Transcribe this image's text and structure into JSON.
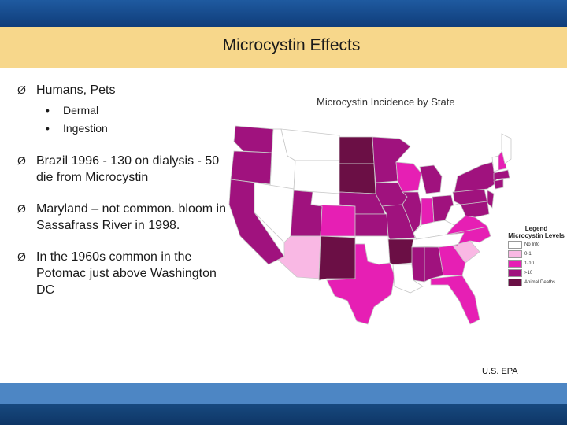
{
  "slide": {
    "title": "Microcystin Effects",
    "bullets": [
      {
        "text": "Humans, Pets",
        "sub": [
          "Dermal",
          "Ingestion"
        ]
      },
      {
        "text": "Brazil 1996 - 130 on dialysis - 50 die from Microcystin"
      },
      {
        "text": "Maryland – not common. bloom in Sassafrass River in 1998."
      },
      {
        "text": "In the 1960s common in the Potomac just above Washington DC"
      }
    ],
    "bullet_glyph": "Ø",
    "sub_bullet_glyph": "•",
    "credit": "U.S. EPA"
  },
  "map": {
    "title": "Microcystin Incidence by State",
    "legend": {
      "title_line1": "Legend",
      "title_line2": "Microcystin Levels",
      "items": [
        {
          "label": "No Info",
          "color": "#ffffff"
        },
        {
          "label": "0-1",
          "color": "#f9b8e4"
        },
        {
          "label": "1-10",
          "color": "#e61fb4"
        },
        {
          "label": ">10",
          "color": "#a0127e"
        },
        {
          "label": "Animal Deaths",
          "color": "#6b0f45"
        }
      ]
    },
    "colors": {
      "no_info": "#ffffff",
      "low": "#f9b8e4",
      "mid": "#e61fb4",
      "high": "#a0127e",
      "deaths": "#6b0f45",
      "border": "#c8c8c8"
    }
  },
  "theme": {
    "top_band": "#1f5aa0",
    "title_band": "#f7d78b",
    "bottom_band": "#4d86c4",
    "bottom_band_dark": "#17497f"
  }
}
